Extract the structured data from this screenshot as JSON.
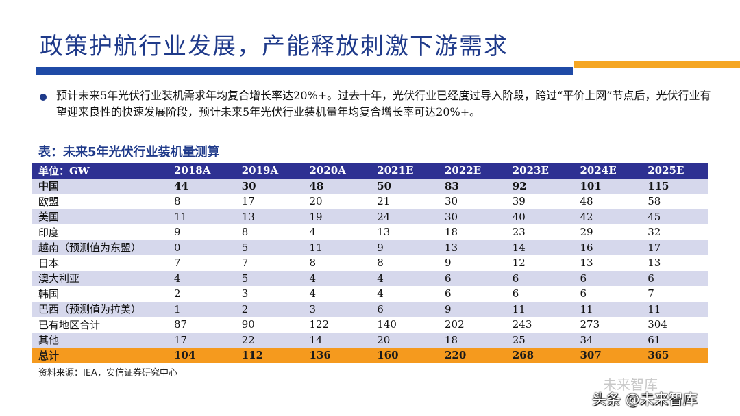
{
  "title": "政策护航行业发展，产能释放刺激下游需求",
  "bullet": "预计未来5年光伏行业装机需求年均复合增长率达20%+。过去十年，光伏行业已经度过导入阶段，跨过“平价上网”节点后，光伏行业有望迎来良性的快速发展阶段，预计未来5年光伏行业装机量年均复合增长率可达20%+。",
  "table_title": "表：未来5年光伏行业装机量测算",
  "table": {
    "headers": [
      "单位：GW",
      "2018A",
      "2019A",
      "2020A",
      "2021E",
      "2022E",
      "2023E",
      "2024E",
      "2025E"
    ],
    "rows": [
      [
        "中国",
        "44",
        "30",
        "48",
        "50",
        "83",
        "92",
        "101",
        "115"
      ],
      [
        "欧盟",
        "8",
        "17",
        "20",
        "21",
        "30",
        "39",
        "48",
        "58"
      ],
      [
        "美国",
        "11",
        "13",
        "19",
        "24",
        "30",
        "40",
        "42",
        "45"
      ],
      [
        "印度",
        "9",
        "8",
        "4",
        "13",
        "18",
        "23",
        "29",
        "32"
      ],
      [
        "越南（预测值为东盟）",
        "0",
        "5",
        "11",
        "9",
        "13",
        "14",
        "16",
        "17"
      ],
      [
        "日本",
        "7",
        "7",
        "8",
        "8",
        "9",
        "12",
        "13",
        "13"
      ],
      [
        "澳大利亚",
        "4",
        "5",
        "4",
        "4",
        "6",
        "6",
        "6",
        "6"
      ],
      [
        "韩国",
        "2",
        "3",
        "4",
        "4",
        "6",
        "6",
        "6",
        "7"
      ],
      [
        "巴西（预测值为拉美）",
        "1",
        "2",
        "3",
        "6",
        "9",
        "11",
        "11",
        "11"
      ],
      [
        "已有地区合计",
        "87",
        "90",
        "122",
        "140",
        "202",
        "243",
        "273",
        "304"
      ],
      [
        "其他",
        "17",
        "22",
        "14",
        "20",
        "18",
        "25",
        "34",
        "61"
      ],
      [
        "总计",
        "104",
        "112",
        "136",
        "160",
        "220",
        "268",
        "307",
        "365"
      ]
    ]
  },
  "source": "资料来源：IEA，安信证券研究中心",
  "watermark_faint": "未来智库",
  "watermark_main": "头条 @未来智库"
}
